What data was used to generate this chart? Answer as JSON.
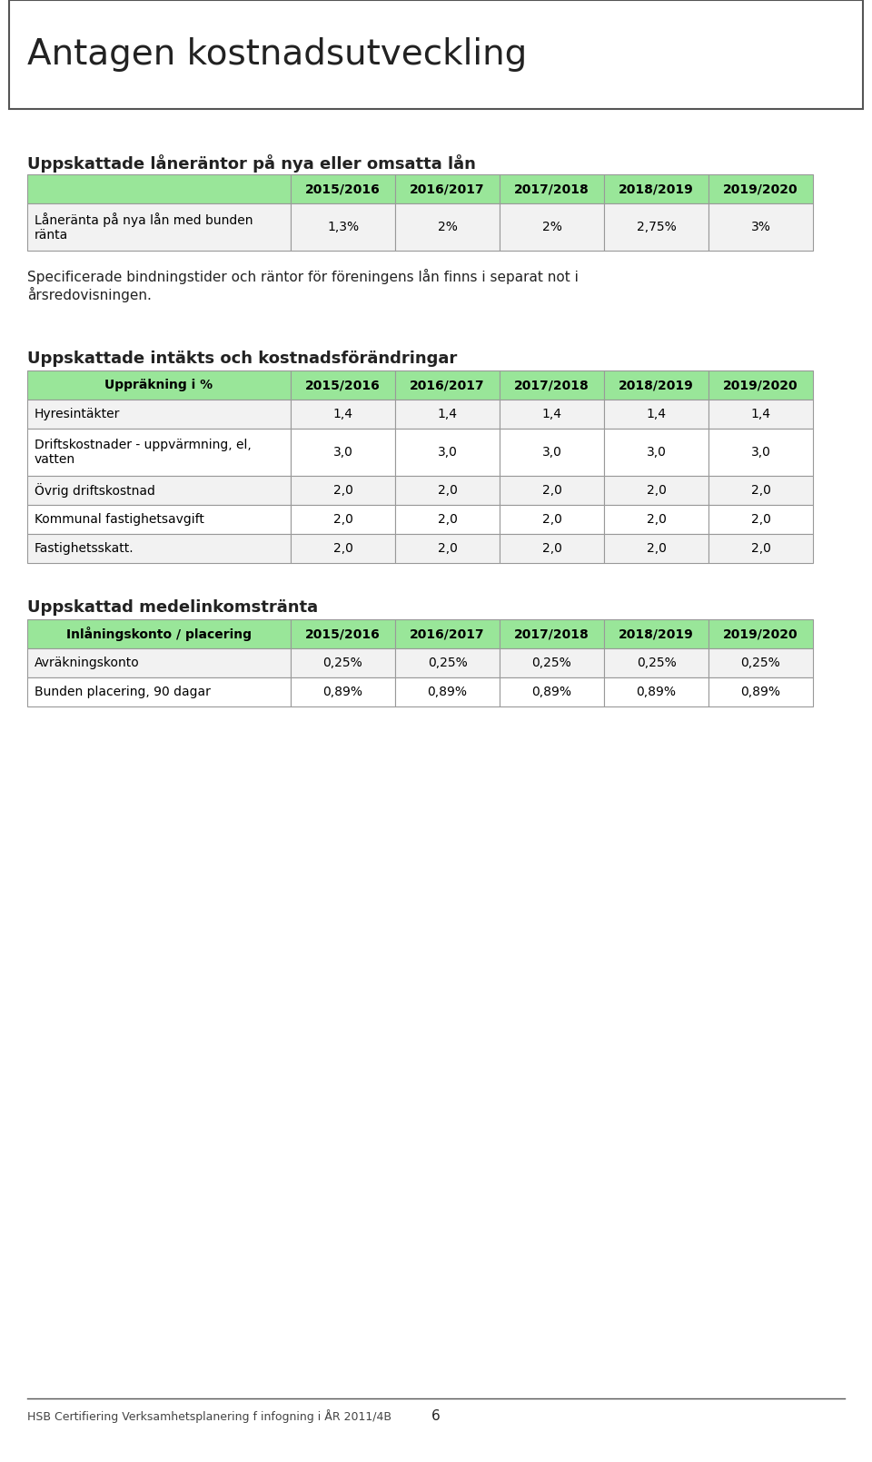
{
  "title": "Antagen kostnadsutveckling",
  "background_color": "#ffffff",
  "header_bg": "#99e699",
  "header_text_color": "#000000",
  "row_bg_even": "#f2f2f2",
  "row_bg_odd": "#ffffff",
  "border_color": "#999999",
  "section1_title": "Uppskattade låneräntor på nya eller omsatta lån",
  "table1_headers": [
    "",
    "2015/2016",
    "2016/2017",
    "2017/2018",
    "2018/2019",
    "2019/2020"
  ],
  "table1_rows": [
    [
      "Låneränta på nya lån med bunden\nränta",
      "1,3%",
      "2%",
      "2%",
      "2,75%",
      "3%"
    ]
  ],
  "paragraph": "Specificerade bindningstider och räntor för föreningens lån finns i separat not i\nårsredovisningen.",
  "section2_title": "Uppskattade intäkts och kostnadsförändringar",
  "table2_headers": [
    "Uppräkning i %",
    "2015/2016",
    "2016/2017",
    "2017/2018",
    "2018/2019",
    "2019/2020"
  ],
  "table2_rows": [
    [
      "Hyresintäkter",
      "1,4",
      "1,4",
      "1,4",
      "1,4",
      "1,4"
    ],
    [
      "Driftskostnader - uppvärmning, el,\nvatten",
      "3,0",
      "3,0",
      "3,0",
      "3,0",
      "3,0"
    ],
    [
      "Övrig driftskostnad",
      "2,0",
      "2,0",
      "2,0",
      "2,0",
      "2,0"
    ],
    [
      "Kommunal fastighetsavgift",
      "2,0",
      "2,0",
      "2,0",
      "2,0",
      "2,0"
    ],
    [
      "Fastighetsskatt.",
      "2,0",
      "2,0",
      "2,0",
      "2,0",
      "2,0"
    ]
  ],
  "section3_title": "Uppskattad medelinkomstränta",
  "table3_headers": [
    "Inlåningskonto / placering",
    "2015/2016",
    "2016/2017",
    "2017/2018",
    "2018/2019",
    "2019/2020"
  ],
  "table3_rows": [
    [
      "Avräkningskonto",
      "0,25%",
      "0,25%",
      "0,25%",
      "0,25%",
      "0,25%"
    ],
    [
      "Bunden placering, 90 dagar",
      "0,89%",
      "0,89%",
      "0,89%",
      "0,89%",
      "0,89%"
    ]
  ],
  "footer_text": "HSB Certifiering Verksamhetsplanering f infogning i ÅR 2011/4B",
  "page_number": "6"
}
